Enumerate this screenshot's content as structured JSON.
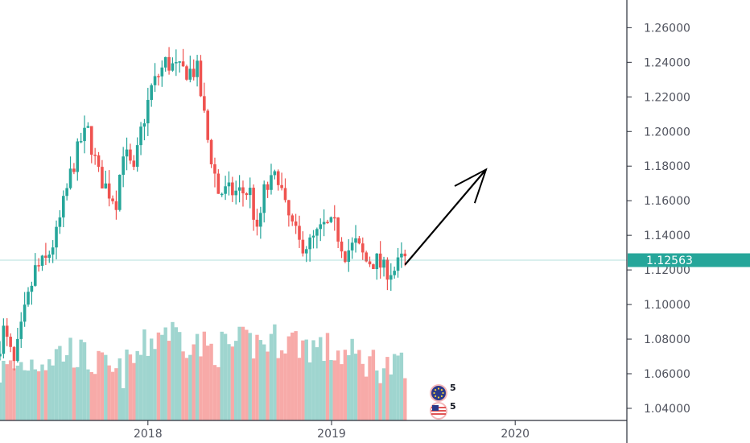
{
  "chart_data": {
    "type": "candlestick",
    "title": "",
    "xlabel": "",
    "ylabel": "",
    "ylim": [
      1.033,
      1.276
    ],
    "y_ticks": [
      "1.26000",
      "1.24000",
      "1.22000",
      "1.20000",
      "1.18000",
      "1.16000",
      "1.14000",
      "1.12000",
      "1.10000",
      "1.08000",
      "1.06000",
      "1.04000"
    ],
    "x_ticks": [
      {
        "label": "2018",
        "date": "2018-01-01"
      },
      {
        "label": "2019",
        "date": "2019-01-01"
      },
      {
        "label": "2020",
        "date": "2020-01-01"
      }
    ],
    "x_range": [
      "2017-03-13",
      "2020-08-10"
    ],
    "current_price": "1.12563",
    "grid": false,
    "colors": {
      "up": "#26a69a",
      "down": "#ef5350",
      "volume_up": "#9fd5cf",
      "volume_down": "#f7aaa8",
      "price_tag": "#26a69a",
      "axis_text": "#50535e",
      "arrow": "#000000"
    },
    "anchor_points": [
      {
        "date": "2017-03-13",
        "price": 1.07
      },
      {
        "date": "2017-03-27",
        "price": 1.085
      },
      {
        "date": "2017-04-17",
        "price": 1.065
      },
      {
        "date": "2017-05-08",
        "price": 1.095
      },
      {
        "date": "2017-05-29",
        "price": 1.12
      },
      {
        "date": "2017-06-19",
        "price": 1.125
      },
      {
        "date": "2017-07-10",
        "price": 1.14
      },
      {
        "date": "2017-08-07",
        "price": 1.175
      },
      {
        "date": "2017-08-28",
        "price": 1.195
      },
      {
        "date": "2017-09-11",
        "price": 1.2
      },
      {
        "date": "2017-10-02",
        "price": 1.175
      },
      {
        "date": "2017-10-23",
        "price": 1.165
      },
      {
        "date": "2017-11-06",
        "price": 1.16
      },
      {
        "date": "2017-11-20",
        "price": 1.19
      },
      {
        "date": "2017-12-11",
        "price": 1.175
      },
      {
        "date": "2017-12-25",
        "price": 1.2
      },
      {
        "date": "2018-01-15",
        "price": 1.225
      },
      {
        "date": "2018-02-12",
        "price": 1.24
      },
      {
        "date": "2018-03-12",
        "price": 1.235
      },
      {
        "date": "2018-04-16",
        "price": 1.235
      },
      {
        "date": "2018-05-07",
        "price": 1.195
      },
      {
        "date": "2018-05-28",
        "price": 1.165
      },
      {
        "date": "2018-06-25",
        "price": 1.165
      },
      {
        "date": "2018-07-30",
        "price": 1.165
      },
      {
        "date": "2018-08-13",
        "price": 1.14
      },
      {
        "date": "2018-08-27",
        "price": 1.165
      },
      {
        "date": "2018-09-24",
        "price": 1.175
      },
      {
        "date": "2018-10-08",
        "price": 1.155
      },
      {
        "date": "2018-11-05",
        "price": 1.135
      },
      {
        "date": "2018-11-26",
        "price": 1.135
      },
      {
        "date": "2018-12-24",
        "price": 1.145
      },
      {
        "date": "2019-01-14",
        "price": 1.145
      },
      {
        "date": "2019-02-04",
        "price": 1.13
      },
      {
        "date": "2019-02-25",
        "price": 1.135
      },
      {
        "date": "2019-03-18",
        "price": 1.125
      },
      {
        "date": "2019-04-08",
        "price": 1.125
      },
      {
        "date": "2019-04-22",
        "price": 1.12
      },
      {
        "date": "2019-05-13",
        "price": 1.12
      },
      {
        "date": "2019-05-27",
        "price": 1.1256
      }
    ],
    "volume_levels": [
      {
        "date": "2017-03-13",
        "level": 0.45
      },
      {
        "date": "2017-08-01",
        "level": 0.65
      },
      {
        "date": "2017-11-01",
        "level": 0.4
      },
      {
        "date": "2018-02-01",
        "level": 0.85
      },
      {
        "date": "2018-05-01",
        "level": 0.65
      },
      {
        "date": "2018-10-01",
        "level": 0.75
      },
      {
        "date": "2019-02-01",
        "level": 0.6
      },
      {
        "date": "2019-05-27",
        "level": 0.45
      }
    ],
    "projection_arrow": {
      "from": {
        "date": "2019-05-27",
        "price": 1.123
      },
      "to": {
        "date": "2019-11-04",
        "price": 1.178
      }
    }
  },
  "badges": [
    {
      "icon": "eu-flag-icon",
      "count": "5"
    },
    {
      "icon": "us-flag-icon",
      "count": "5"
    }
  ]
}
